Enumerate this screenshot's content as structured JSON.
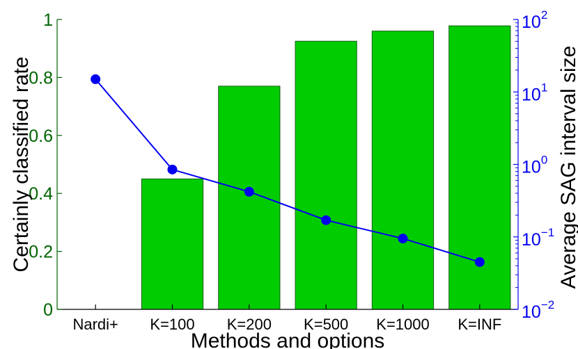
{
  "chart_data": {
    "type": "bar",
    "xlabel": "Methods and options",
    "ylabel": "Certainly classified rate",
    "y2label": "Average SAG interval size",
    "categories": [
      "Nardi+",
      "K=100",
      "K=200",
      "K=500",
      "K=1000",
      "K=INF"
    ],
    "bar_series": {
      "values": [
        0,
        0.45,
        0.77,
        0.925,
        0.96,
        0.978
      ],
      "color": "#00cc00",
      "axis": "left"
    },
    "line_series": {
      "values": [
        15,
        0.85,
        0.42,
        0.17,
        0.095,
        0.045
      ],
      "color": "#0000ee",
      "axis": "right",
      "scale": "log"
    },
    "ylim": [
      0,
      1
    ],
    "y2lim": [
      0.01,
      100
    ],
    "yticks": [
      "0",
      "0.2",
      "0.4",
      "0.6",
      "0.8",
      "1"
    ],
    "y2ticks": [
      {
        "base": "10",
        "exp": "−2"
      },
      {
        "base": "10",
        "exp": "−1"
      },
      {
        "base": "10",
        "exp": "0"
      },
      {
        "base": "10",
        "exp": "1"
      },
      {
        "base": "10",
        "exp": "2"
      }
    ],
    "colors": {
      "left_axis": "#006400",
      "right_axis": "#0000ee"
    }
  }
}
